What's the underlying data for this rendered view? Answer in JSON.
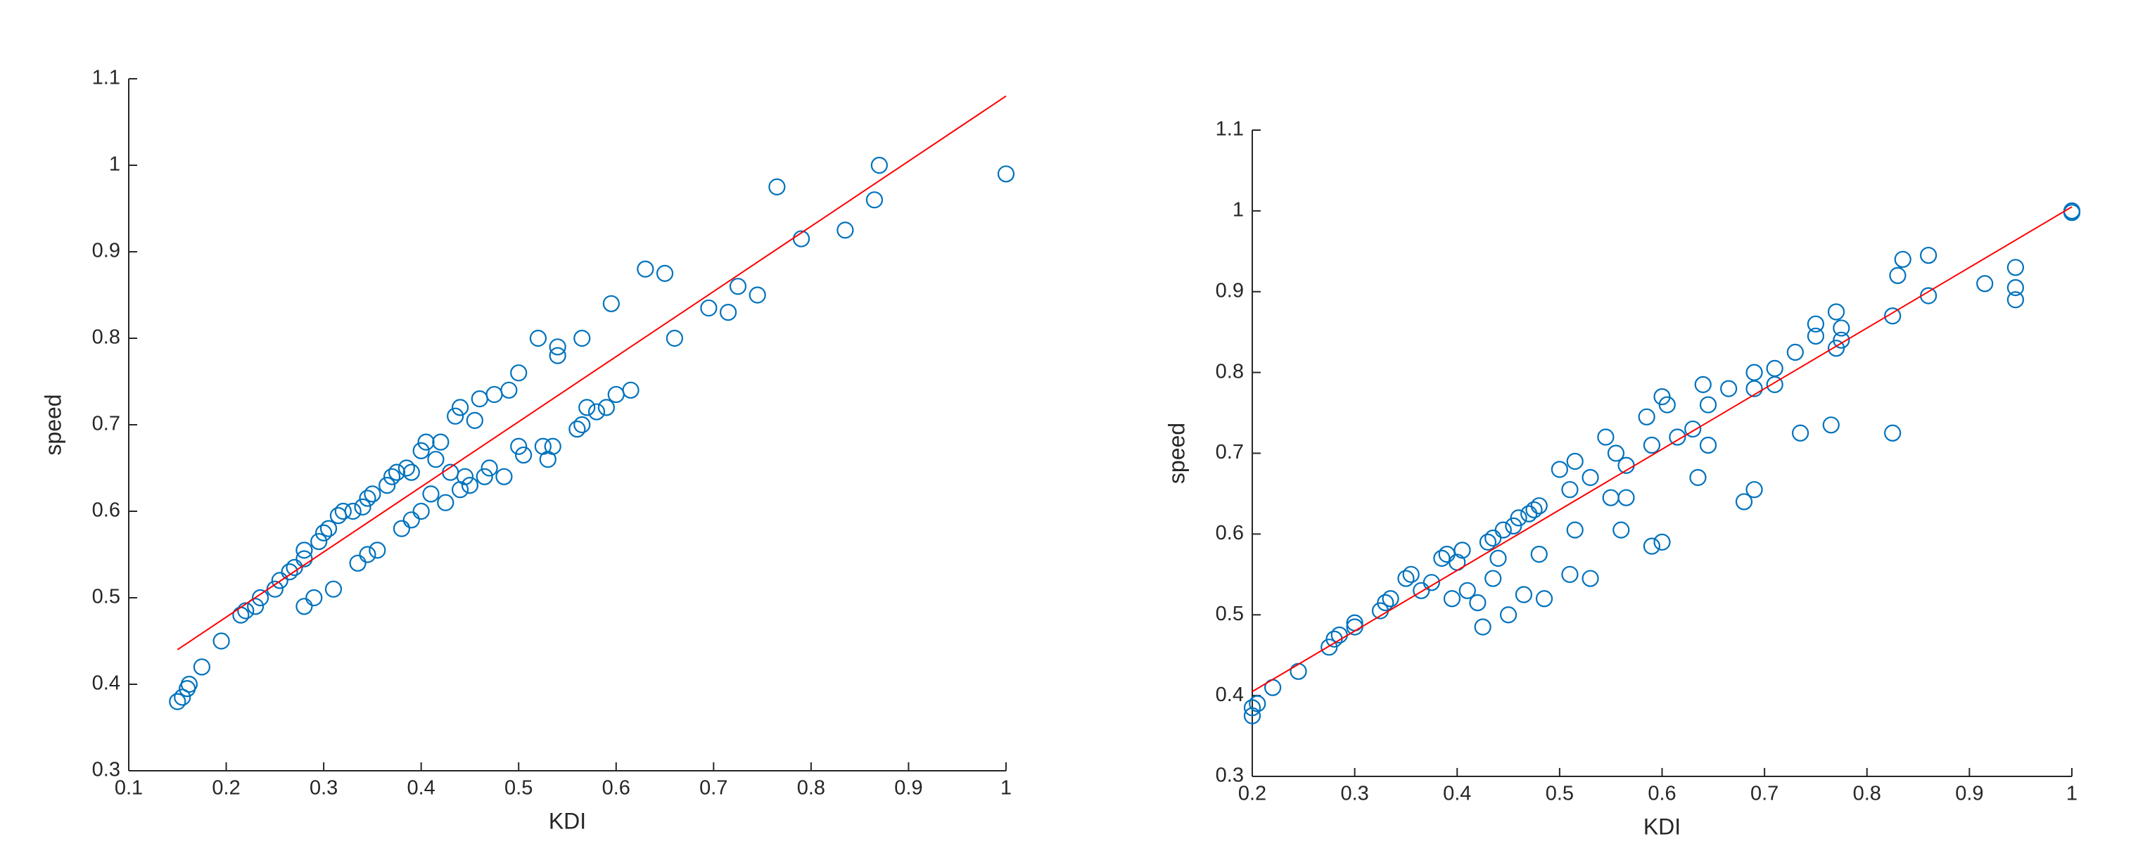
{
  "chart_data": [
    {
      "type": "scatter",
      "xlabel": "KDI",
      "ylabel": "speed",
      "color": "#0072bd",
      "xlim": [
        0.1,
        1
      ],
      "ylim": [
        0.3,
        1.1
      ],
      "xticks": [
        0.1,
        0.2,
        0.3,
        0.4,
        0.5,
        0.6,
        0.7,
        0.8,
        0.9,
        1
      ],
      "yticks": [
        0.3,
        0.4,
        0.5,
        0.6,
        0.7,
        0.8,
        0.9,
        1,
        1.1
      ],
      "x": [
        0.15,
        0.155,
        0.16,
        0.162,
        0.175,
        0.195,
        0.215,
        0.22,
        0.23,
        0.235,
        0.25,
        0.255,
        0.265,
        0.27,
        0.28,
        0.28,
        0.28,
        0.29,
        0.295,
        0.3,
        0.305,
        0.31,
        0.315,
        0.32,
        0.33,
        0.335,
        0.34,
        0.345,
        0.345,
        0.35,
        0.355,
        0.365,
        0.37,
        0.375,
        0.38,
        0.385,
        0.39,
        0.39,
        0.4,
        0.4,
        0.405,
        0.41,
        0.415,
        0.42,
        0.425,
        0.43,
        0.435,
        0.44,
        0.44,
        0.445,
        0.45,
        0.455,
        0.46,
        0.465,
        0.47,
        0.475,
        0.485,
        0.49,
        0.5,
        0.5,
        0.505,
        0.52,
        0.525,
        0.53,
        0.535,
        0.54,
        0.54,
        0.56,
        0.565,
        0.565,
        0.57,
        0.58,
        0.59,
        0.595,
        0.6,
        0.615,
        0.63,
        0.65,
        0.66,
        0.695,
        0.715,
        0.725,
        0.745,
        0.765,
        0.79,
        0.835,
        0.865,
        0.87,
        1.0
      ],
      "y": [
        0.38,
        0.385,
        0.395,
        0.4,
        0.42,
        0.45,
        0.48,
        0.485,
        0.49,
        0.5,
        0.51,
        0.52,
        0.53,
        0.535,
        0.545,
        0.555,
        0.49,
        0.5,
        0.565,
        0.575,
        0.58,
        0.51,
        0.595,
        0.6,
        0.6,
        0.54,
        0.605,
        0.615,
        0.55,
        0.62,
        0.555,
        0.63,
        0.64,
        0.645,
        0.58,
        0.65,
        0.645,
        0.59,
        0.6,
        0.67,
        0.68,
        0.62,
        0.66,
        0.68,
        0.61,
        0.645,
        0.71,
        0.625,
        0.72,
        0.64,
        0.63,
        0.705,
        0.73,
        0.64,
        0.65,
        0.735,
        0.64,
        0.74,
        0.675,
        0.76,
        0.665,
        0.8,
        0.675,
        0.66,
        0.675,
        0.78,
        0.79,
        0.695,
        0.7,
        0.8,
        0.72,
        0.715,
        0.72,
        0.84,
        0.735,
        0.74,
        0.88,
        0.875,
        0.8,
        0.835,
        0.83,
        0.86,
        0.85,
        0.975,
        0.915,
        0.925,
        0.96,
        1.0,
        0.99
      ],
      "fit": {
        "color": "#ff0000",
        "x": [
          0.15,
          1
        ],
        "y": [
          0.44,
          1.08
        ]
      }
    },
    {
      "type": "scatter",
      "xlabel": "KDI",
      "ylabel": "speed",
      "color": "#0072bd",
      "xlim": [
        0.2,
        1
      ],
      "ylim": [
        0.3,
        1.1
      ],
      "xticks": [
        0.2,
        0.3,
        0.4,
        0.5,
        0.6,
        0.7,
        0.8,
        0.9,
        1
      ],
      "yticks": [
        0.3,
        0.4,
        0.5,
        0.6,
        0.7,
        0.8,
        0.9,
        1,
        1.1
      ],
      "x": [
        0.2,
        0.2,
        0.205,
        0.22,
        0.245,
        0.275,
        0.28,
        0.285,
        0.3,
        0.3,
        0.325,
        0.33,
        0.335,
        0.35,
        0.355,
        0.365,
        0.375,
        0.385,
        0.39,
        0.395,
        0.4,
        0.405,
        0.41,
        0.42,
        0.425,
        0.43,
        0.435,
        0.435,
        0.44,
        0.445,
        0.45,
        0.455,
        0.46,
        0.465,
        0.47,
        0.475,
        0.48,
        0.48,
        0.485,
        0.5,
        0.51,
        0.51,
        0.515,
        0.515,
        0.53,
        0.53,
        0.545,
        0.55,
        0.555,
        0.56,
        0.565,
        0.565,
        0.585,
        0.59,
        0.59,
        0.6,
        0.6,
        0.605,
        0.615,
        0.63,
        0.635,
        0.64,
        0.645,
        0.645,
        0.665,
        0.68,
        0.69,
        0.69,
        0.69,
        0.71,
        0.71,
        0.73,
        0.735,
        0.75,
        0.75,
        0.765,
        0.77,
        0.77,
        0.775,
        0.775,
        0.825,
        0.825,
        0.83,
        0.835,
        0.86,
        0.86,
        0.915,
        0.945,
        0.945,
        0.945,
        1.0,
        1.0
      ],
      "y": [
        0.375,
        0.385,
        0.39,
        0.41,
        0.43,
        0.46,
        0.47,
        0.475,
        0.485,
        0.49,
        0.505,
        0.515,
        0.52,
        0.545,
        0.55,
        0.53,
        0.54,
        0.57,
        0.575,
        0.52,
        0.565,
        0.58,
        0.53,
        0.515,
        0.485,
        0.59,
        0.595,
        0.545,
        0.57,
        0.605,
        0.5,
        0.61,
        0.62,
        0.525,
        0.625,
        0.63,
        0.635,
        0.575,
        0.52,
        0.68,
        0.655,
        0.55,
        0.69,
        0.605,
        0.67,
        0.545,
        0.72,
        0.645,
        0.7,
        0.605,
        0.685,
        0.645,
        0.745,
        0.71,
        0.585,
        0.77,
        0.59,
        0.76,
        0.72,
        0.73,
        0.67,
        0.785,
        0.71,
        0.76,
        0.78,
        0.64,
        0.8,
        0.78,
        0.655,
        0.805,
        0.785,
        0.825,
        0.725,
        0.86,
        0.845,
        0.735,
        0.875,
        0.83,
        0.855,
        0.84,
        0.87,
        0.725,
        0.92,
        0.94,
        0.945,
        0.895,
        0.91,
        0.93,
        0.905,
        0.89,
        1.0,
        0.998
      ],
      "fit": {
        "color": "#ff0000",
        "x": [
          0.2,
          1
        ],
        "y": [
          0.405,
          1.005
        ]
      }
    }
  ]
}
